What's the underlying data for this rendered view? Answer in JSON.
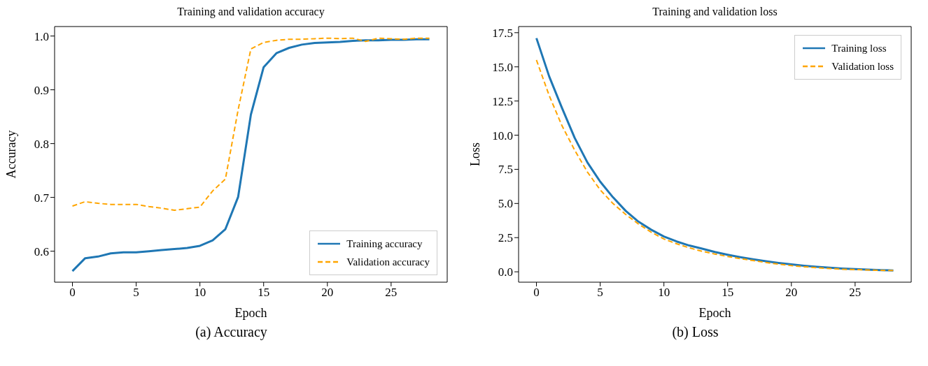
{
  "chart_data": [
    {
      "type": "line",
      "title": "Training and validation accuracy",
      "xlabel": "Epoch",
      "ylabel": "Accuracy",
      "x": [
        0,
        1,
        2,
        3,
        4,
        5,
        6,
        7,
        8,
        9,
        10,
        11,
        12,
        13,
        14,
        15,
        16,
        17,
        18,
        19,
        20,
        21,
        22,
        23,
        24,
        25,
        26,
        27,
        28
      ],
      "series": [
        {
          "name": "Training accuracy",
          "color": "#1f77b4",
          "line_style": "solid",
          "values": [
            0.563,
            0.587,
            0.59,
            0.596,
            0.598,
            0.598,
            0.6,
            0.602,
            0.604,
            0.606,
            0.61,
            0.62,
            0.641,
            0.701,
            0.854,
            0.942,
            0.968,
            0.978,
            0.984,
            0.987,
            0.988,
            0.989,
            0.991,
            0.992,
            0.992,
            0.993,
            0.993,
            0.994,
            0.994
          ]
        },
        {
          "name": "Validation accuracy",
          "color": "#ffa500",
          "line_style": "dashed",
          "values": [
            0.684,
            0.692,
            0.689,
            0.687,
            0.687,
            0.687,
            0.683,
            0.68,
            0.676,
            0.679,
            0.682,
            0.712,
            0.734,
            0.863,
            0.976,
            0.988,
            0.992,
            0.994,
            0.994,
            0.995,
            0.996,
            0.995,
            0.996,
            0.99,
            0.996,
            0.995,
            0.994,
            0.996,
            0.996
          ]
        }
      ],
      "xlim": [
        -1.4,
        29.4
      ],
      "xticks": [
        0,
        5,
        10,
        15,
        20,
        25
      ],
      "ylim": [
        0.5424,
        1.0176
      ],
      "yticks": [
        0.6,
        0.7,
        0.8,
        0.9,
        {
          "value": 1,
          "label": "1.0"
        }
      ],
      "grid": false,
      "legend": "bottom right",
      "marker": "none",
      "annotations": [
        "(a) Accuracy"
      ]
    },
    {
      "type": "line",
      "title": "Training and validation loss",
      "xlabel": "Epoch",
      "ylabel": "Loss",
      "x": [
        0,
        1,
        2,
        3,
        4,
        5,
        6,
        7,
        8,
        9,
        10,
        11,
        12,
        13,
        14,
        15,
        16,
        17,
        18,
        19,
        20,
        21,
        22,
        23,
        24,
        25,
        26,
        27,
        28
      ],
      "series": [
        {
          "name": "Training loss",
          "color": "#1f77b4",
          "line_style": "solid",
          "values": [
            17.1,
            14.3,
            12.0,
            9.8,
            8.0,
            6.6,
            5.46,
            4.46,
            3.67,
            3.08,
            2.58,
            2.22,
            1.92,
            1.69,
            1.45,
            1.25,
            1.07,
            0.91,
            0.77,
            0.65,
            0.54,
            0.44,
            0.36,
            0.3,
            0.24,
            0.2,
            0.16,
            0.12,
            0.1
          ]
        },
        {
          "name": "Validation loss",
          "color": "#ffa500",
          "line_style": "dashed",
          "values": [
            15.5,
            12.9,
            10.7,
            8.9,
            7.3,
            6.0,
            5.0,
            4.2,
            3.5,
            2.9,
            2.4,
            2.05,
            1.75,
            1.5,
            1.3,
            1.12,
            0.96,
            0.82,
            0.68,
            0.56,
            0.45,
            0.37,
            0.3,
            0.24,
            0.19,
            0.16,
            0.13,
            0.11,
            0.09
          ]
        }
      ],
      "xlim": [
        -1.4,
        29.4
      ],
      "xticks": [
        0,
        5,
        10,
        15,
        20,
        25
      ],
      "ylim": [
        -0.76,
        17.95
      ],
      "yticks": [
        {
          "value": 0,
          "label": "0.0"
        },
        2.5,
        {
          "value": 5,
          "label": "5.0"
        },
        7.5,
        {
          "value": 10,
          "label": "10.0"
        },
        12.5,
        {
          "value": 15,
          "label": "15.0"
        },
        17.5
      ],
      "grid": false,
      "legend": "top right",
      "marker": "none",
      "annotations": [
        "(b) Loss"
      ]
    }
  ]
}
